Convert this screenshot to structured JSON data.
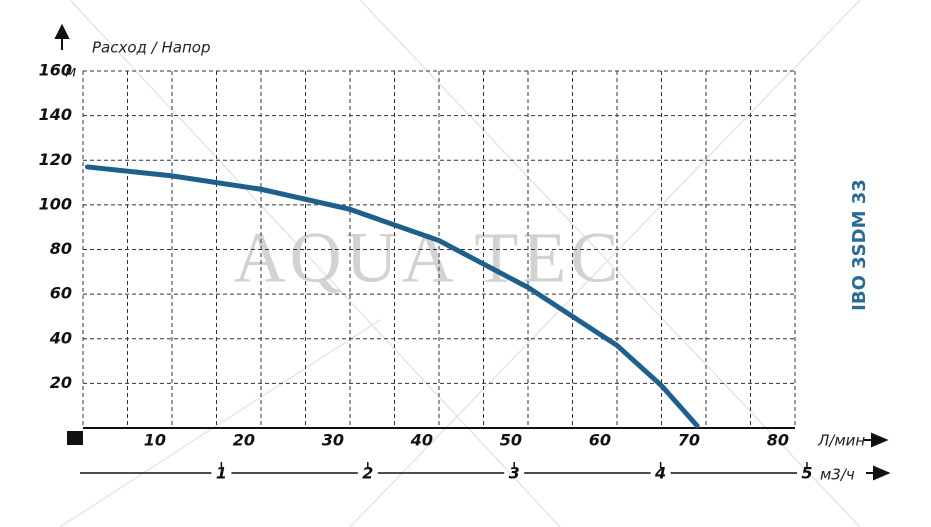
{
  "chart_data": {
    "type": "line",
    "title": "IBO 3SDM 33",
    "watermark": "AQUA TEC",
    "y_axis_title": "Расход / Напор",
    "y_unit": "м",
    "x_unit": "Л/мин",
    "x2_unit": "м3/ч",
    "x": [
      0.5,
      10,
      20,
      30,
      40,
      50,
      60,
      65,
      69
    ],
    "series": [
      {
        "name": "IBO 3SDM 33",
        "color": "#1f5f8b",
        "values": [
          117,
          113,
          107,
          98,
          84,
          63,
          37,
          19,
          1
        ]
      }
    ],
    "xlim": [
      0,
      80
    ],
    "xticks": [
      10,
      20,
      30,
      40,
      50,
      60,
      70,
      80
    ],
    "xminor": [
      5,
      15,
      25,
      35,
      45,
      55,
      65,
      75
    ],
    "ylim": [
      0,
      160
    ],
    "yticks": [
      20,
      40,
      60,
      80,
      100,
      120,
      140,
      160
    ],
    "x2lim": [
      0,
      5
    ],
    "x2ticks": [
      1,
      2,
      3,
      4,
      5
    ],
    "grid": true
  }
}
